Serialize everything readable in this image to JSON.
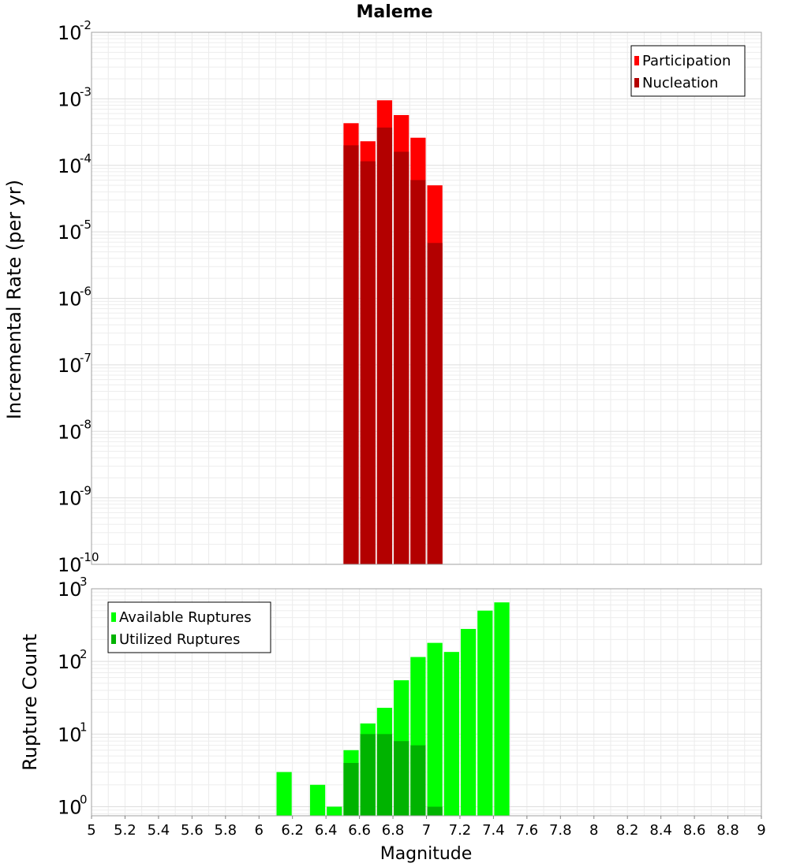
{
  "chart_data": [
    {
      "type": "bar",
      "title": "Maleme",
      "ylabel": "Incremental Rate (per yr)",
      "xlabel": "",
      "yscale": "log",
      "ylim": [
        1e-10,
        0.01
      ],
      "xlim": [
        5,
        9
      ],
      "x_tick_labels": [],
      "y_tick_exponents": [
        "-10",
        "-9",
        "-8",
        "-7",
        "-6",
        "-5",
        "-4",
        "-3",
        "-2"
      ],
      "legend_position": "top-right",
      "bin_width": 0.1,
      "x": [
        6.55,
        6.65,
        6.75,
        6.85,
        6.95,
        7.05
      ],
      "series": [
        {
          "name": "Participation",
          "color": "#ff0000",
          "values": [
            0.00043,
            0.00023,
            0.00095,
            0.00057,
            0.00026,
            5e-05
          ]
        },
        {
          "name": "Nucleation",
          "color": "#b30000",
          "values": [
            0.0002,
            0.000115,
            0.00037,
            0.00016,
            6e-05,
            6.8e-06
          ]
        }
      ],
      "grid": true
    },
    {
      "type": "bar",
      "title": "",
      "ylabel": "Rupture Count",
      "xlabel": "Magnitude",
      "yscale": "log",
      "ylim": [
        0.75,
        1000
      ],
      "xlim": [
        5,
        9
      ],
      "x_tick_labels": [
        "5",
        "5.2",
        "5.4",
        "5.6",
        "5.8",
        "6",
        "6.2",
        "6.4",
        "6.6",
        "6.8",
        "7",
        "7.2",
        "7.4",
        "7.6",
        "7.8",
        "8",
        "8.2",
        "8.4",
        "8.6",
        "8.8",
        "9"
      ],
      "y_tick_exponents": [
        "0",
        "1",
        "2",
        "3"
      ],
      "legend_position": "top-left",
      "bin_width": 0.1,
      "x": [
        6.15,
        6.35,
        6.45,
        6.55,
        6.65,
        6.75,
        6.85,
        6.95,
        7.05,
        7.15,
        7.25,
        7.35,
        7.45
      ],
      "series": [
        {
          "name": "Available Ruptures",
          "color": "#00ff00",
          "values": [
            3,
            2,
            1,
            6,
            14,
            23,
            55,
            115,
            180,
            135,
            280,
            500,
            650
          ]
        },
        {
          "name": "Utilized Ruptures",
          "color": "#00b300",
          "values": [
            0,
            0,
            0,
            4,
            10,
            10,
            8,
            7,
            1,
            0,
            0,
            0,
            0
          ]
        }
      ],
      "grid": true
    }
  ]
}
